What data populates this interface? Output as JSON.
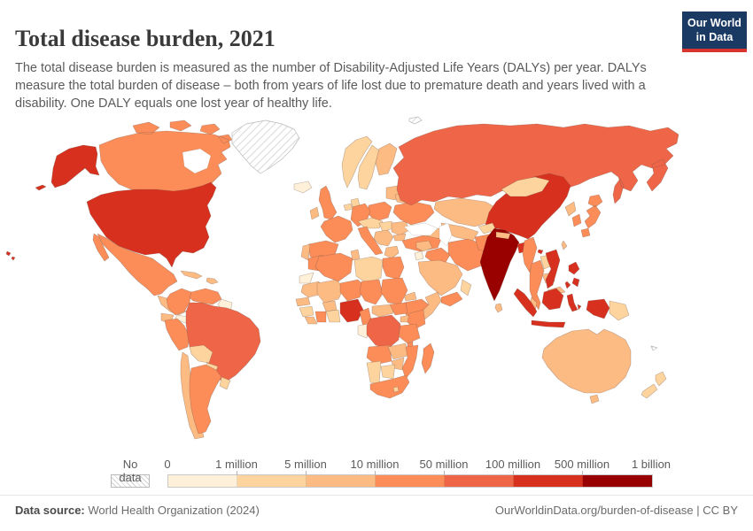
{
  "header": {
    "title": "Total disease burden, 2021",
    "subtitle": "The total disease burden is measured as the number of Disability-Adjusted Life Years (DALYs) per year. DALYs measure the total burden of disease – both from years of life lost due to premature death and years lived with a disability. One DALY equals one lost year of healthy life."
  },
  "logo": {
    "line1": "Our World",
    "line2": "in Data",
    "bg_color": "#1a3a63",
    "accent_color": "#d8352e"
  },
  "legend": {
    "no_data_label": "No data",
    "labels": [
      "0",
      "1 million",
      "5 million",
      "10 million",
      "50 million",
      "100 million",
      "500 million",
      "1 billion"
    ]
  },
  "footer": {
    "source_label": "Data source:",
    "source_value": "World Health Organization (2024)",
    "link_text": "OurWorldinData.org/burden-of-disease",
    "separator": "|",
    "license_text": "CC BY"
  },
  "chart_data": {
    "type": "choropleth",
    "title": "Total disease burden, 2021",
    "metric": "Disability-Adjusted Life Years (DALYs) per year",
    "year": 2021,
    "palette": {
      "colors": [
        "#fef0d9",
        "#fdd49e",
        "#fdbb84",
        "#fc8d59",
        "#ef6548",
        "#d7301f",
        "#990000"
      ],
      "bin_edges": [
        "0",
        "1 million",
        "5 million",
        "10 million",
        "50 million",
        "100 million",
        "500 million",
        "1 billion"
      ],
      "no_data_pattern": "diagonal-hatch"
    },
    "bin_meaning": "value 1..7 = index into palette.colors; ranges given by bin_edges; 'no-data' = hatched",
    "countries": {
      "Greenland": "no-data",
      "Svalbard": "no-data",
      "New Caledonia": "no-data",
      "India": 7,
      "United States": 6,
      "China": 6,
      "Nigeria": 6,
      "Pakistan": 6,
      "Indonesia": 6,
      "Bangladesh": 6,
      "Vietnam": 6,
      "Philippines": 6,
      "Russia": 5,
      "Brazil": 5,
      "DR Congo": 5,
      "Canada": 4,
      "Mexico": 4,
      "Colombia": 4,
      "Venezuela": 4,
      "Peru": 4,
      "Argentina": 4,
      "United Kingdom": 4,
      "France": 4,
      "Germany": 4,
      "Spain": 4,
      "Italy": 4,
      "Poland": 4,
      "Ukraine": 4,
      "Turkey": 4,
      "Iran": 4,
      "Iraq": 4,
      "Yemen": 4,
      "Afghanistan": 4,
      "Egypt": 4,
      "Algeria": 4,
      "Morocco": 4,
      "Niger": 4,
      "Chad": 4,
      "Sudan": 4,
      "South Sudan": 4,
      "Ethiopia": 4,
      "Kenya": 4,
      "Tanzania": 4,
      "Angola": 4,
      "Mozambique": 4,
      "South Africa": 4,
      "Madagascar": 4,
      "Cameroon": 4,
      "Cote d'Ivoire": 4,
      "Thailand": 4,
      "Myanmar": 4,
      "Japan": 4,
      "South Korea": 4,
      "Malawi": 4,
      "Australia": 3,
      "Kazakhstan": 3,
      "Uzbekistan": 3,
      "Saudi Arabia": 3,
      "Ireland": 3,
      "Portugal": 3,
      "Romania": 3,
      "Bulgaria": 3,
      "Greece": 3,
      "Belarus": 3,
      "Baltic States": 3,
      "North Korea": 3,
      "Malaysia": 3,
      "Cambodia": 3,
      "Sri Lanka": 3,
      "Somalia": 3,
      "Mali": 3,
      "Mauritania": 3,
      "Burkina Faso": 3,
      "Sierra Leone": 3,
      "Central African Republic": 3,
      "Zambia": 3,
      "Zimbabwe": 3,
      "Chile": 3,
      "Ecuador": 3,
      "Cuba": 3,
      "Dominican Republic": 3,
      "Guatemala": 3,
      "Taiwan": 3,
      "Eritrea": 3,
      "Uganda": 3,
      "Senegal": 3,
      "Syria": 3,
      "Caucasus": 3,
      "Finland": 3,
      "Nepal": 3,
      "Balkans": 3,
      "Tunisia": 3,
      "Mongolia": 2,
      "Libya": 2,
      "Norway": 2,
      "Sweden": 2,
      "Denmark": 2,
      "Bolivia": 2,
      "Paraguay": 2,
      "Uruguay": 2,
      "Laos": 2,
      "Papua New Guinea": 2,
      "New Zealand": 2,
      "Botswana": 2,
      "Namibia": 2,
      "Central Europe": 2,
      "Hungary": 2,
      "Kyrgyzstan": 2,
      "Oman": 2,
      "Ghana": 2,
      "Guinea": 2,
      "Lesotho": 2,
      "Netherlands": 2,
      "Iceland": 1,
      "Western Sahara": 1,
      "Gabon/Congo": 1,
      "Guianas": 1,
      "Costa Rica/Panama": 1,
      "Israel/Jordan": 1
    }
  }
}
